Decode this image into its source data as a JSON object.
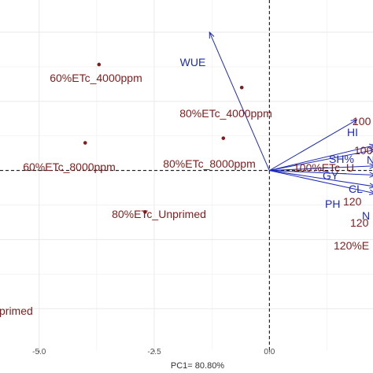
{
  "chart_data": {
    "type": "scatter",
    "title": "",
    "xlabel": "PC1= 80.80%",
    "ylabel": "",
    "xlim": [
      -5.85,
      2.25
    ],
    "ylim": [
      -3.9,
      3.7
    ],
    "x_ticks": [
      -5.0,
      -2.5,
      0.0
    ],
    "x_tick_labels": [
      "-5.0",
      "-2.5",
      "0.0"
    ],
    "y_ticks": [
      -3.0,
      -1.5,
      0.0,
      1.5,
      3.0
    ],
    "grid": true,
    "reference_lines": {
      "x": 0,
      "y": 0,
      "style": "dashed"
    },
    "colors": {
      "observations": "#7f1d1d",
      "variables": "#1e2ab8",
      "grid": "#ebebeb"
    },
    "observations": [
      {
        "label": "60%ETc_4000ppm",
        "x": -3.7,
        "y": 2.3
      },
      {
        "label": "80%ETc_4000ppm",
        "x": -0.6,
        "y": 1.8
      },
      {
        "label": "60%ETc_8000ppm",
        "x": -4.0,
        "y": 0.6
      },
      {
        "label": "80%ETc_8000ppm",
        "x": -1.0,
        "y": 0.7
      },
      {
        "label": "80%ETc_Unprimed",
        "x": -2.7,
        "y": -0.9
      },
      {
        "label": "primed",
        "x": null,
        "y": null
      },
      {
        "label": "100",
        "x": null,
        "y": null
      },
      {
        "label": "100",
        "x": null,
        "y": null
      },
      {
        "label": "100%ETc_U",
        "x": null,
        "y": null
      },
      {
        "label": "120",
        "x": null,
        "y": null
      },
      {
        "label": "120",
        "x": null,
        "y": null
      },
      {
        "label": "120%E",
        "x": null,
        "y": null
      }
    ],
    "variables": [
      {
        "label": "WUE",
        "x": -1.3,
        "y": 3.0
      },
      {
        "label": "HI",
        "x": 1.9,
        "y": 1.1
      },
      {
        "label": "SH%",
        "x": 2.3,
        "y": 0.55
      },
      {
        "label": "N",
        "x": 2.3,
        "y": 0.45
      },
      {
        "label": "GY",
        "x": 2.3,
        "y": 0.1
      },
      {
        "label": "CL",
        "x": 2.3,
        "y": -0.1
      },
      {
        "label": "PH",
        "x": 2.3,
        "y": -0.35
      },
      {
        "label": "N",
        "x": 2.3,
        "y": -0.5
      }
    ]
  }
}
